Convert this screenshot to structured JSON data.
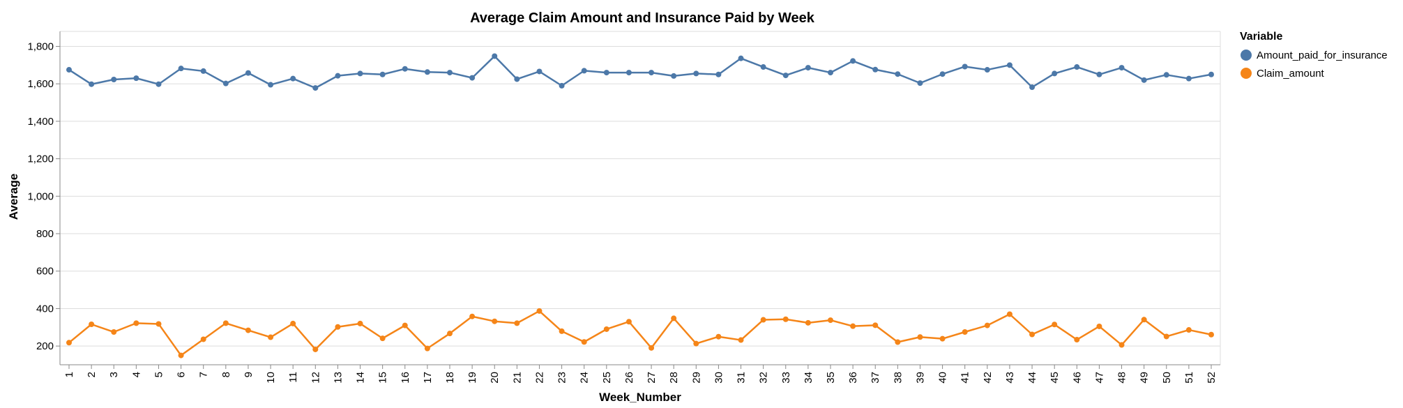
{
  "chart_data": {
    "type": "line",
    "title": "Average Claim Amount and Insurance Paid by Week",
    "xlabel": "Week_Number",
    "ylabel": "Average",
    "x": [
      1,
      2,
      3,
      4,
      5,
      6,
      7,
      8,
      9,
      10,
      11,
      12,
      13,
      14,
      15,
      16,
      17,
      18,
      19,
      20,
      21,
      22,
      23,
      24,
      25,
      26,
      27,
      28,
      29,
      30,
      31,
      32,
      33,
      34,
      35,
      36,
      37,
      38,
      39,
      40,
      41,
      42,
      43,
      44,
      45,
      46,
      47,
      48,
      49,
      50,
      51,
      52
    ],
    "ylim": [
      100,
      1880
    ],
    "yticks": [
      200,
      400,
      600,
      800,
      1000,
      1200,
      1400,
      1600,
      1800
    ],
    "ytick_labels": [
      "200",
      "400",
      "600",
      "800",
      "1,000",
      "1,200",
      "1,400",
      "1,600",
      "1,800"
    ],
    "grid": true,
    "legend_title": "Variable",
    "legend_position": "right",
    "series": [
      {
        "name": "Amount_paid_for_insurance",
        "color": "#4c78a8",
        "values": [
          1675,
          1598,
          1623,
          1630,
          1598,
          1682,
          1668,
          1602,
          1658,
          1595,
          1628,
          1578,
          1643,
          1655,
          1650,
          1680,
          1663,
          1660,
          1632,
          1748,
          1625,
          1666,
          1590,
          1670,
          1660,
          1660,
          1660,
          1642,
          1655,
          1650,
          1736,
          1690,
          1645,
          1686,
          1660,
          1722,
          1676,
          1652,
          1604,
          1652,
          1692,
          1675,
          1700,
          1582,
          1655,
          1690,
          1650,
          1686,
          1620,
          1648,
          1628,
          1650
        ]
      },
      {
        "name": "Claim_amount",
        "color": "#f58518",
        "values": [
          218,
          316,
          275,
          322,
          318,
          150,
          236,
          322,
          284,
          247,
          320,
          182,
          302,
          320,
          241,
          310,
          187,
          267,
          358,
          332,
          322,
          387,
          279,
          222,
          290,
          330,
          190,
          348,
          213,
          250,
          232,
          340,
          343,
          324,
          338,
          306,
          311,
          221,
          248,
          239,
          275,
          310,
          370,
          262,
          315,
          234,
          305,
          206,
          341,
          251,
          286,
          261
        ]
      }
    ]
  }
}
